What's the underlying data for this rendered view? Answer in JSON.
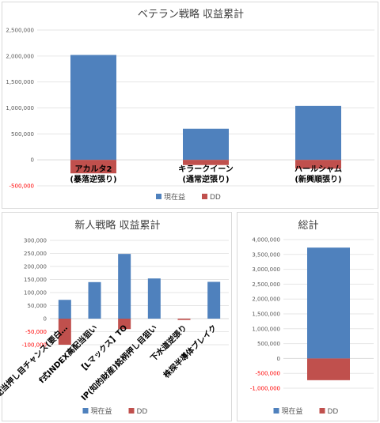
{
  "colors": {
    "current": "#4f81bd",
    "dd": "#c0504d",
    "grid": "#e6e6e6",
    "negative_tick": "#ff0000"
  },
  "chart_data": [
    {
      "type": "bar",
      "title": "ベテラン戦略 収益累計",
      "categories": [
        [
          "アカルタ2",
          "(暴落逆張り)"
        ],
        [
          "キラークイーン",
          "(通常逆張り)"
        ],
        [
          "ハールシャム",
          "(新興順張り)"
        ]
      ],
      "series": [
        {
          "name": "現在益",
          "key": "current",
          "values": [
            2020000,
            600000,
            1040000
          ]
        },
        {
          "name": "DD",
          "key": "dd",
          "values": [
            -260000,
            -100000,
            -170000
          ]
        }
      ],
      "ylim": [
        -500000,
        2500000
      ],
      "ticks": [
        -500000,
        0,
        500000,
        1000000,
        1500000,
        2000000,
        2500000
      ],
      "tick_labels": [
        "-500,000",
        "0",
        "500,000",
        "1,000,000",
        "1,500,000",
        "2,000,000",
        "2,500,000"
      ],
      "legend": "bottom"
    },
    {
      "type": "bar",
      "title": "新人戦略 収益累計",
      "categories": [
        "高配当押し目チャンス(要白…",
        "f式INDEX高配当狙い",
        "【Lマックス】TO",
        "IP(知的財産)銘柄押し目狙い",
        "下水道逆張り",
        "株探半導体ブレイク"
      ],
      "series": [
        {
          "name": "現在益",
          "key": "current",
          "values": [
            72000,
            140000,
            248000,
            154000,
            0,
            141000
          ]
        },
        {
          "name": "DD",
          "key": "dd",
          "values": [
            -100000,
            0,
            -40000,
            0,
            -5000,
            0
          ]
        }
      ],
      "ylim": [
        -100000,
        300000
      ],
      "ticks": [
        -100000,
        -50000,
        0,
        50000,
        100000,
        150000,
        200000,
        250000,
        300000
      ],
      "tick_labels": [
        "-100,000",
        "-50,000",
        "0",
        "50,000",
        "100,000",
        "150,000",
        "200,000",
        "250,000",
        "300,000"
      ],
      "legend": "bottom"
    },
    {
      "type": "bar",
      "title": "総計",
      "categories": [
        ""
      ],
      "series": [
        {
          "name": "現在益",
          "key": "current",
          "values": [
            3730000
          ]
        },
        {
          "name": "DD",
          "key": "dd",
          "values": [
            -730000
          ]
        }
      ],
      "ylim": [
        -1000000,
        4000000
      ],
      "ticks": [
        -1000000,
        -500000,
        0,
        500000,
        1000000,
        1500000,
        2000000,
        2500000,
        3000000,
        3500000,
        4000000
      ],
      "tick_labels": [
        "-1,000,000",
        "-500,000",
        "0",
        "500,000",
        "1,000,000",
        "1,500,000",
        "2,000,000",
        "2,500,000",
        "3,000,000",
        "3,500,000",
        "4,000,000"
      ],
      "legend": "bottom"
    }
  ]
}
